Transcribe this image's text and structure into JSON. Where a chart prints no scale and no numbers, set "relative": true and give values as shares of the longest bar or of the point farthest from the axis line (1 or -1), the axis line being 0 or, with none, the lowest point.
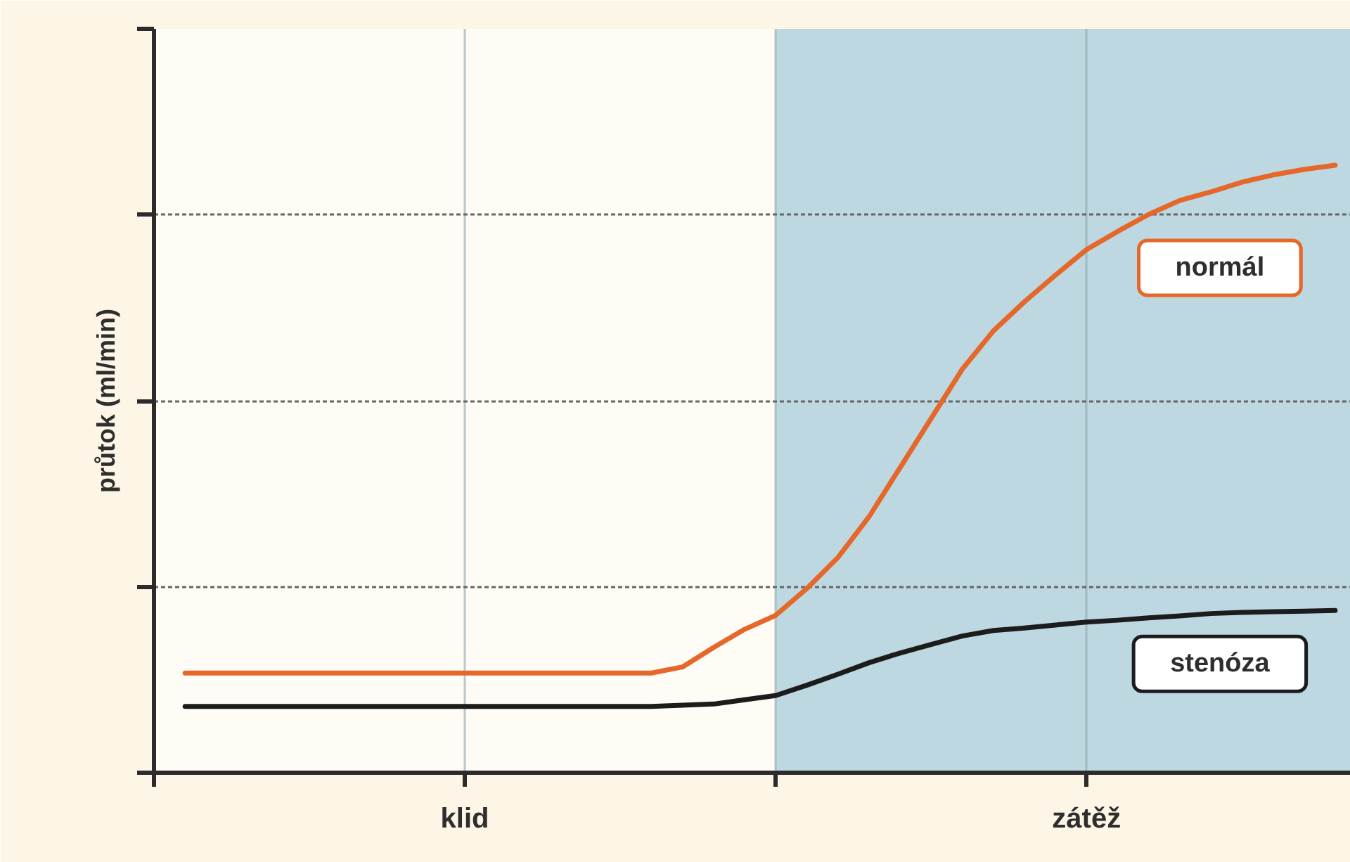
{
  "chart_data": {
    "type": "line",
    "relative": true,
    "ylabel": "průtok (ml/min)",
    "categories": [
      null,
      null,
      null,
      null,
      null,
      null,
      null,
      null,
      null,
      "klid",
      null,
      null,
      null,
      null,
      null,
      null,
      null,
      null,
      null,
      null,
      null,
      null,
      null,
      null,
      null,
      null,
      null,
      null,
      null,
      "zátěž",
      null,
      null,
      null,
      null,
      null,
      null,
      null,
      null
    ],
    "tick_labels": "x",
    "grid": true,
    "line_style": "solid",
    "series": [
      {
        "name": "normál",
        "color": "#e5672a",
        "values": [
          0.164,
          0.164,
          0.164,
          0.164,
          0.164,
          0.164,
          0.164,
          0.164,
          0.164,
          0.164,
          0.164,
          0.164,
          0.164,
          0.164,
          0.164,
          0.164,
          0.174,
          0.206,
          0.236,
          0.259,
          0.303,
          0.354,
          0.421,
          0.502,
          0.583,
          0.664,
          0.727,
          0.775,
          0.819,
          0.861,
          0.891,
          0.919,
          0.942,
          0.956,
          0.972,
          0.984,
          0.993,
          1.0
        ]
      },
      {
        "name": "stenóza",
        "color": "#1c1c1c",
        "values": [
          0.109,
          0.109,
          0.109,
          0.109,
          0.109,
          0.109,
          0.109,
          0.109,
          0.109,
          0.109,
          0.109,
          0.109,
          0.109,
          0.109,
          0.109,
          0.109,
          0.111,
          0.113,
          0.12,
          0.127,
          0.144,
          0.162,
          0.181,
          0.197,
          0.211,
          0.225,
          0.234,
          0.238,
          0.243,
          0.248,
          0.251,
          0.255,
          0.258,
          0.262,
          0.264,
          0.265,
          0.266,
          0.267
        ]
      }
    ]
  }
}
